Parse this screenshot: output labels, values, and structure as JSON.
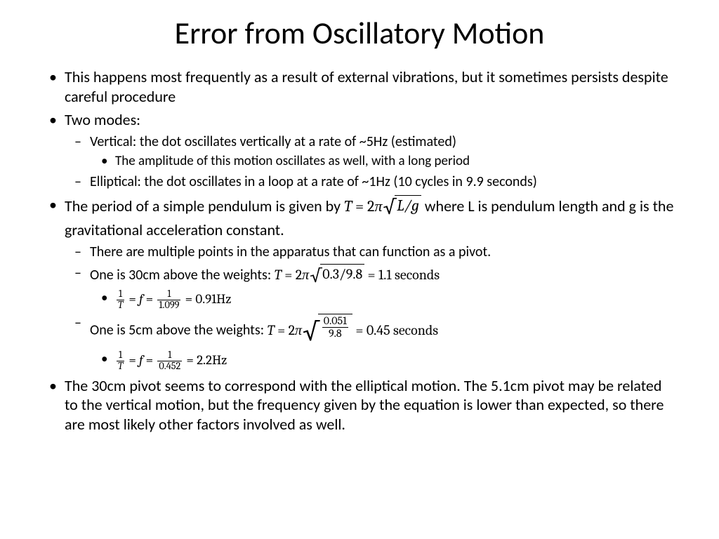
{
  "title": "Error from Oscillatory Motion",
  "b1": "This happens most frequently as a result of external vibrations, but it sometimes persists despite careful procedure",
  "b2": "Two modes:",
  "b2_1": "Vertical: the dot oscillates vertically at a rate of ~5Hz (estimated)",
  "b2_1_1": "The amplitude of this motion oscillates as well, with a long period",
  "b2_2": "Elliptical: the dot oscillates in a loop at a rate of ~1Hz (10 cycles in 9.9 seconds)",
  "b3_pre": "The period of a simple pendulum is given by ",
  "b3_T": "T",
  "b3_eq": " = 2",
  "b3_pi": "π",
  "b3_rad": "L/g",
  "b3_post": " where L is pendulum length and g is the gravitational acceleration constant.",
  "b3_1": "There are multiple points in the apparatus that can function as a pivot.",
  "b3_2_pre": "One is 30cm above the weights: ",
  "b3_2_rad": "0.3/9.8",
  "b3_2_res": " = 1.1 seconds",
  "b3_2_1_num1": "1",
  "b3_2_1_denT": "T",
  "b3_2_1_mid": " = ",
  "b3_2_1_f": "f",
  "b3_2_1_num2": "1",
  "b3_2_1_den2": "1.099",
  "b3_2_1_res": " = 0.91Hz",
  "b3_3_pre": "One is 5cm above the weights: ",
  "b3_3_radnum": "0.051",
  "b3_3_radden": "9.8",
  "b3_3_res": "  = 0.45 seconds",
  "b3_3_1_num1": "1",
  "b3_3_1_denT": "T",
  "b3_3_1_f": "f",
  "b3_3_1_num2": "1",
  "b3_3_1_den2": "0.452",
  "b3_3_1_res": " = 2.2Hz",
  "b4": "The 30cm pivot seems to correspond with the elliptical motion. The 5.1cm pivot may be related to the vertical motion, but the frequency given by the equation is lower than expected, so there are most likely other factors involved as well."
}
